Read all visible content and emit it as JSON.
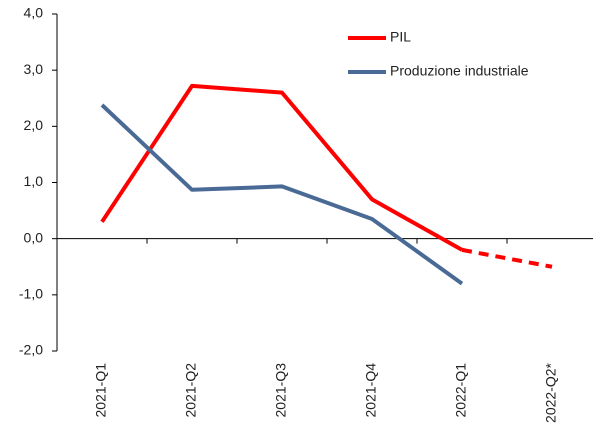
{
  "chart_data": {
    "type": "line",
    "categories": [
      "2021-Q1",
      "2021-Q2",
      "2021-Q3",
      "2021-Q4",
      "2022-Q1",
      "2022-Q2*"
    ],
    "series": [
      {
        "name": "PIL",
        "color": "#ff0000",
        "values": [
          0.3,
          2.72,
          2.6,
          0.7,
          -0.2,
          -0.5
        ],
        "dashed_from": 4
      },
      {
        "name": "Produzione industriale",
        "color": "#4a6a96",
        "values": [
          2.38,
          0.87,
          0.93,
          0.35,
          -0.8,
          null
        ]
      }
    ],
    "ylim": [
      -2,
      4
    ],
    "yticks": [
      {
        "value": -2,
        "label": "-2,0"
      },
      {
        "value": -1,
        "label": "-1,0"
      },
      {
        "value": 0,
        "label": "0,0"
      },
      {
        "value": 1,
        "label": "1,0"
      },
      {
        "value": 2,
        "label": "2,0"
      },
      {
        "value": 3,
        "label": "3,0"
      },
      {
        "value": 4,
        "label": "4,0"
      }
    ],
    "grid": false,
    "legend": "upper right"
  }
}
